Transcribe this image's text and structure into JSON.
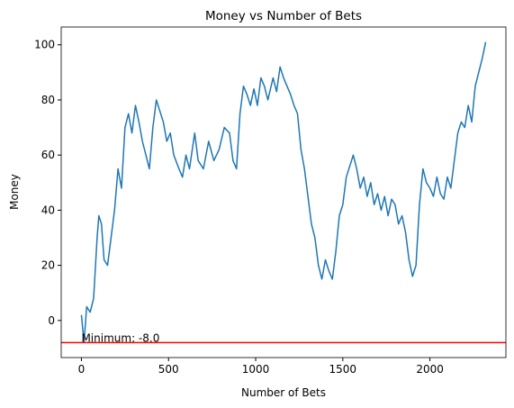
{
  "chart_data": {
    "type": "line",
    "title": "Money vs Number of Bets",
    "x_label": "Number of Bets",
    "y_label": "Money",
    "x": [
      0,
      15,
      30,
      50,
      70,
      90,
      100,
      115,
      130,
      150,
      170,
      190,
      210,
      230,
      250,
      270,
      290,
      310,
      330,
      350,
      370,
      390,
      410,
      430,
      450,
      470,
      490,
      510,
      530,
      560,
      580,
      600,
      620,
      650,
      670,
      700,
      730,
      760,
      790,
      820,
      850,
      870,
      890,
      910,
      930,
      950,
      970,
      990,
      1010,
      1030,
      1050,
      1070,
      1100,
      1120,
      1140,
      1160,
      1180,
      1200,
      1220,
      1240,
      1260,
      1280,
      1300,
      1320,
      1340,
      1360,
      1380,
      1400,
      1420,
      1440,
      1460,
      1480,
      1500,
      1520,
      1540,
      1560,
      1580,
      1600,
      1620,
      1640,
      1660,
      1680,
      1700,
      1720,
      1740,
      1760,
      1780,
      1800,
      1820,
      1840,
      1860,
      1880,
      1900,
      1920,
      1940,
      1960,
      1980,
      2000,
      2020,
      2040,
      2060,
      2080,
      2100,
      2120,
      2140,
      2160,
      2180,
      2200,
      2220,
      2240,
      2260,
      2280,
      2300,
      2320
    ],
    "series": [
      {
        "name": "Money",
        "color": "#1f77b4",
        "values": [
          2,
          -8,
          5,
          3,
          8,
          30,
          38,
          35,
          22,
          20,
          30,
          40,
          55,
          48,
          70,
          75,
          68,
          78,
          72,
          65,
          60,
          55,
          70,
          80,
          76,
          72,
          65,
          68,
          60,
          55,
          52,
          60,
          55,
          68,
          58,
          55,
          65,
          58,
          62,
          70,
          68,
          58,
          55,
          75,
          85,
          82,
          78,
          84,
          78,
          88,
          85,
          80,
          88,
          83,
          92,
          88,
          85,
          82,
          78,
          75,
          62,
          55,
          45,
          35,
          30,
          20,
          15,
          22,
          18,
          15,
          25,
          38,
          42,
          52,
          56,
          60,
          55,
          48,
          52,
          45,
          50,
          42,
          46,
          40,
          45,
          38,
          44,
          42,
          35,
          38,
          32,
          22,
          16,
          20,
          42,
          55,
          50,
          48,
          45,
          52,
          46,
          44,
          52,
          48,
          58,
          68,
          72,
          70,
          78,
          72,
          85,
          90,
          95,
          101
        ]
      }
    ],
    "hline": {
      "value": -8,
      "color": "red"
    },
    "annotation": {
      "text": "Minimum: -8.0",
      "x": 0,
      "y": -8
    },
    "xlim": [
      -116,
      2436
    ],
    "ylim": [
      -13.45,
      106.45
    ],
    "xticks": [
      0,
      500,
      1000,
      1500,
      2000
    ],
    "yticks": [
      0,
      20,
      40,
      60,
      80,
      100
    ]
  }
}
